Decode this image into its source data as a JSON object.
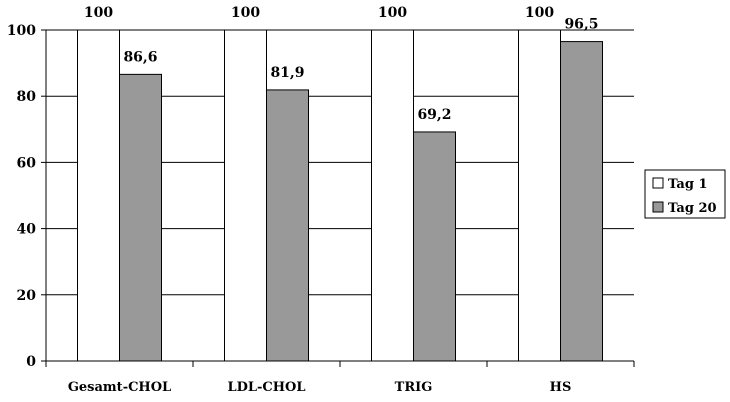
{
  "chart_data": {
    "type": "bar",
    "title": "",
    "xlabel": "",
    "ylabel": "",
    "categories": [
      "Gesamt-CHOL",
      "LDL-CHOL",
      "TRIG",
      "HS"
    ],
    "series": [
      {
        "name": "Tag 1",
        "values": [
          100,
          100,
          100,
          100
        ],
        "labels": [
          "100",
          "100",
          "100",
          "100"
        ],
        "color": "#ffffff"
      },
      {
        "name": "Tag 20",
        "values": [
          86.6,
          81.9,
          69.2,
          96.5
        ],
        "labels": [
          "86,6",
          "81,9",
          "69,2",
          "96,5"
        ],
        "color": "#999999"
      }
    ],
    "ylim": [
      0,
      100
    ],
    "yticks": [
      0,
      20,
      40,
      60,
      80,
      100
    ],
    "grid": true,
    "legend_position": "right"
  }
}
